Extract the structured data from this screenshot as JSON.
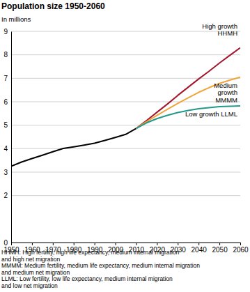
{
  "chart_data": {
    "type": "line",
    "title": "Population size 1950-2060",
    "ylabel": "In millions",
    "x": [
      1950,
      1955,
      1960,
      1965,
      1970,
      1975,
      1980,
      1985,
      1990,
      1995,
      2000,
      2005,
      2010,
      2015,
      2020,
      2025,
      2030,
      2035,
      2040,
      2045,
      2050,
      2055,
      2060
    ],
    "series": [
      {
        "color": "#000000",
        "values": [
          3.25,
          3.43,
          3.58,
          3.72,
          3.87,
          4.01,
          4.08,
          4.15,
          4.23,
          4.35,
          4.48,
          4.61,
          4.86,
          null,
          null,
          null,
          null,
          null,
          null,
          null,
          null,
          null,
          null
        ]
      },
      {
        "name": "High growth\nHHMH",
        "color": "#a3162e",
        "values": [
          null,
          null,
          null,
          null,
          null,
          null,
          null,
          null,
          null,
          null,
          null,
          null,
          4.86,
          5.2,
          5.55,
          5.9,
          6.27,
          6.62,
          6.97,
          7.3,
          7.65,
          7.98,
          8.3
        ]
      },
      {
        "name": "Medium\ngrowth\nMMMM",
        "color": "#f0a43a",
        "values": [
          null,
          null,
          null,
          null,
          null,
          null,
          null,
          null,
          null,
          null,
          null,
          null,
          4.86,
          5.15,
          5.42,
          5.68,
          5.93,
          6.17,
          6.4,
          6.6,
          6.78,
          6.92,
          7.05
        ]
      },
      {
        "name": "Low growth LLML",
        "color": "#23998c",
        "values": [
          null,
          null,
          null,
          null,
          null,
          null,
          null,
          null,
          null,
          null,
          null,
          null,
          4.86,
          5.1,
          5.28,
          5.42,
          5.54,
          5.63,
          5.7,
          5.75,
          5.79,
          5.81,
          5.82
        ]
      }
    ],
    "xlim": [
      1950,
      2060
    ],
    "xticks": [
      1950,
      1960,
      1970,
      1980,
      1990,
      2000,
      2010,
      2020,
      2030,
      2040,
      2050,
      2060
    ],
    "ylim": [
      0,
      9
    ],
    "yticks": [
      0,
      2,
      3,
      4,
      5,
      6,
      7,
      8,
      9
    ],
    "grid": true,
    "annotations": [
      "HHMH: High fertility, high life expectancy, medium internal migration\nand high net migration",
      "MMMM: Medium fertility, medium life expectancy, medium internal migration\nand medium net migration",
      "LLML: Low fertility, low life expectancy, medium internal migration\nand low net migration"
    ]
  }
}
